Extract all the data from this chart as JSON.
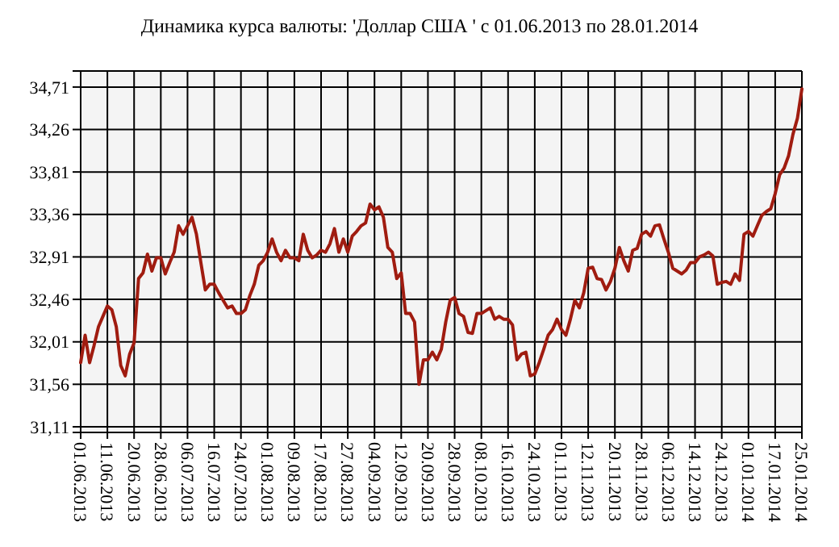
{
  "chart_data": {
    "type": "line",
    "title": "Динамика курса валюты: 'Доллар США ' с 01.06.2013 по 28.01.2014",
    "categories": [
      "01.06.2013",
      null,
      null,
      null,
      null,
      null,
      "11.06.2013",
      null,
      null,
      null,
      null,
      null,
      "20.06.2013",
      null,
      null,
      null,
      null,
      null,
      "28.06.2013",
      null,
      null,
      null,
      null,
      null,
      "06.07.2013",
      null,
      null,
      null,
      null,
      null,
      "16.07.2013",
      null,
      null,
      null,
      null,
      null,
      "24.07.2013",
      null,
      null,
      null,
      null,
      null,
      "01.08.2013",
      null,
      null,
      null,
      null,
      null,
      "09.08.2013",
      null,
      null,
      null,
      null,
      null,
      "17.08.2013",
      null,
      null,
      null,
      null,
      null,
      "27.08.2013",
      null,
      null,
      null,
      null,
      null,
      "04.09.2013",
      null,
      null,
      null,
      null,
      null,
      "12.09.2013",
      null,
      null,
      null,
      null,
      null,
      "20.09.2013",
      null,
      null,
      null,
      null,
      null,
      "28.09.2013",
      null,
      null,
      null,
      null,
      null,
      "08.10.2013",
      null,
      null,
      null,
      null,
      null,
      "16.10.2013",
      null,
      null,
      null,
      null,
      null,
      "24.10.2013",
      null,
      null,
      null,
      null,
      null,
      "01.11.2013",
      null,
      null,
      null,
      null,
      null,
      "12.11.2013",
      null,
      null,
      null,
      null,
      null,
      "20.11.2013",
      null,
      null,
      null,
      null,
      null,
      "28.11.2013",
      null,
      null,
      null,
      null,
      null,
      "06.12.2013",
      null,
      null,
      null,
      null,
      null,
      "14.12.2013",
      null,
      null,
      null,
      null,
      null,
      "24.12.2013",
      null,
      null,
      null,
      null,
      null,
      "01.01.2014",
      null,
      null,
      null,
      null,
      null,
      "17.01.2014",
      null,
      null,
      null,
      null,
      null,
      "25.01.2014"
    ],
    "series": [
      {
        "color": "#a01c10",
        "values": [
          31.79,
          32.08,
          31.79,
          31.97,
          32.17,
          32.28,
          32.39,
          32.35,
          32.17,
          31.76,
          31.65,
          31.88,
          32.0,
          32.68,
          32.74,
          32.94,
          32.76,
          32.9,
          32.9,
          32.73,
          32.85,
          32.96,
          33.24,
          33.15,
          33.24,
          33.33,
          33.15,
          32.85,
          32.56,
          32.62,
          32.62,
          32.53,
          32.45,
          32.37,
          32.39,
          32.31,
          32.31,
          32.35,
          32.5,
          32.62,
          32.82,
          32.87,
          32.96,
          33.1,
          32.96,
          32.87,
          32.98,
          32.9,
          32.9,
          32.87,
          33.15,
          32.98,
          32.9,
          32.93,
          32.98,
          32.96,
          33.05,
          33.21,
          32.96,
          33.1,
          32.96,
          33.13,
          33.18,
          33.24,
          33.27,
          33.47,
          33.41,
          33.44,
          33.33,
          33.01,
          32.96,
          32.68,
          32.74,
          32.31,
          32.31,
          32.22,
          31.56,
          31.82,
          31.82,
          31.9,
          31.82,
          31.93,
          32.22,
          32.45,
          32.48,
          32.31,
          32.28,
          32.11,
          32.1,
          32.31,
          32.31,
          32.34,
          32.37,
          32.25,
          32.28,
          32.25,
          32.25,
          32.19,
          31.82,
          31.88,
          31.9,
          31.65,
          31.67,
          31.79,
          31.93,
          32.08,
          32.14,
          32.25,
          32.14,
          32.08,
          32.25,
          32.45,
          32.37,
          32.53,
          32.79,
          32.8,
          32.68,
          32.67,
          32.56,
          32.65,
          32.79,
          33.01,
          32.87,
          32.76,
          32.98,
          33.0,
          33.15,
          33.18,
          33.13,
          33.24,
          33.25,
          33.1,
          32.96,
          32.79,
          32.76,
          32.73,
          32.77,
          32.85,
          32.85,
          32.91,
          32.93,
          32.96,
          32.92,
          32.62,
          32.64,
          32.65,
          32.62,
          32.73,
          32.66,
          33.15,
          33.18,
          33.13,
          33.24,
          33.35,
          33.39,
          33.42,
          33.58,
          33.78,
          33.85,
          33.98,
          34.21,
          34.38,
          34.69
        ]
      }
    ],
    "ylim": [
      31.05,
      34.88
    ],
    "yticks": [
      {
        "value": 31.11,
        "label": "31,11"
      },
      {
        "value": 31.56,
        "label": "31,56"
      },
      {
        "value": 32.01,
        "label": "32,01"
      },
      {
        "value": 32.46,
        "label": "32,46"
      },
      {
        "value": 32.91,
        "label": "32,91"
      },
      {
        "value": 33.36,
        "label": "33,36"
      },
      {
        "value": 33.81,
        "label": "33,81"
      },
      {
        "value": 34.26,
        "label": "34,26"
      },
      {
        "value": 34.71,
        "label": "34,71"
      }
    ],
    "grid": true,
    "marker": "none",
    "line_style": "solid"
  }
}
